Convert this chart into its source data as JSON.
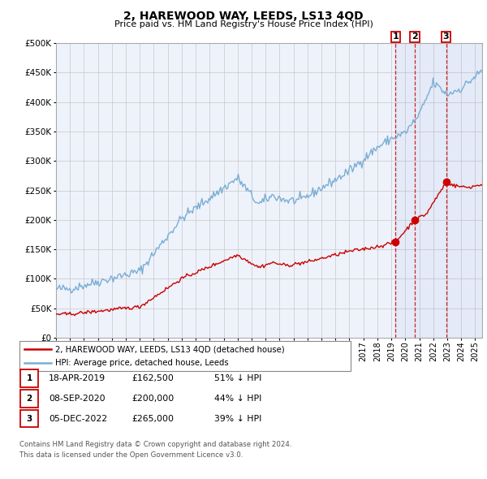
{
  "title": "2, HAREWOOD WAY, LEEDS, LS13 4QD",
  "subtitle": "Price paid vs. HM Land Registry's House Price Index (HPI)",
  "hpi_color": "#7aaed4",
  "price_color": "#cc0000",
  "vline_color": "#cc0000",
  "bg_chart": "#eef2fb",
  "bg_figure": "#ffffff",
  "grid_color": "#c8c8c8",
  "ylim": [
    0,
    500000
  ],
  "yticks": [
    0,
    50000,
    100000,
    150000,
    200000,
    250000,
    300000,
    350000,
    400000,
    450000,
    500000
  ],
  "ytick_labels": [
    "£0",
    "£50K",
    "£100K",
    "£150K",
    "£200K",
    "£250K",
    "£300K",
    "£350K",
    "£400K",
    "£450K",
    "£500K"
  ],
  "xmin": 1995.0,
  "xmax": 2025.5,
  "transactions": [
    {
      "label": "1",
      "date_num": 2019.29,
      "price": 162500,
      "date_str": "18-APR-2019",
      "pct": "51% ↓ HPI"
    },
    {
      "label": "2",
      "date_num": 2020.68,
      "price": 200000,
      "date_str": "08-SEP-2020",
      "pct": "44% ↓ HPI"
    },
    {
      "label": "3",
      "date_num": 2022.92,
      "price": 265000,
      "date_str": "05-DEC-2022",
      "pct": "39% ↓ HPI"
    }
  ],
  "legend_property": "2, HAREWOOD WAY, LEEDS, LS13 4QD (detached house)",
  "legend_hpi": "HPI: Average price, detached house, Leeds",
  "footnote1": "Contains HM Land Registry data © Crown copyright and database right 2024.",
  "footnote2": "This data is licensed under the Open Government Licence v3.0.",
  "table_rows": [
    {
      "num": "1",
      "date": "18-APR-2019",
      "price": "£162,500",
      "pct": "51% ↓ HPI"
    },
    {
      "num": "2",
      "date": "08-SEP-2020",
      "price": "£200,000",
      "pct": "44% ↓ HPI"
    },
    {
      "num": "3",
      "date": "05-DEC-2022",
      "price": "£265,000",
      "pct": "39% ↓ HPI"
    }
  ]
}
